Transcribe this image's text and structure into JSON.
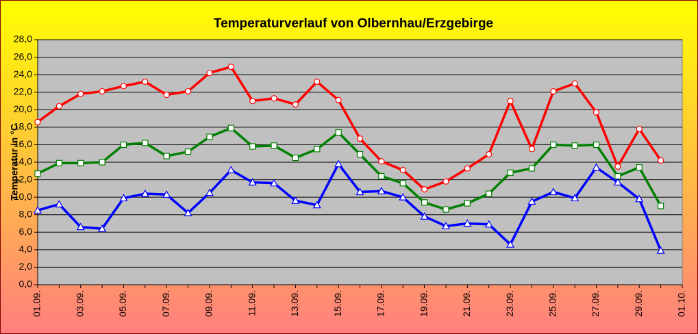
{
  "chart_data": {
    "type": "line",
    "title": "Temperaturverlauf von Olbernhau/Erzgebirge",
    "y_label": "Temperatur in °C",
    "categories": [
      "01.09.",
      null,
      "03.09.",
      null,
      "05.09.",
      null,
      "07.09.",
      null,
      "09.09.",
      null,
      "11.09.",
      null,
      "13.09.",
      null,
      "15.09.",
      null,
      "17.09.",
      null,
      "19.09.",
      null,
      "21.09.",
      null,
      "23.09.",
      null,
      "25.09.",
      null,
      "27.09.",
      null,
      "29.09.",
      null,
      "01.10."
    ],
    "series": [
      {
        "color": "#ff0000",
        "marker": "circle",
        "values": [
          18.6,
          20.4,
          21.8,
          22.1,
          22.7,
          23.2,
          21.7,
          22.1,
          24.2,
          24.9,
          21.0,
          21.3,
          20.6,
          23.2,
          21.1,
          16.7,
          14.1,
          13.1,
          10.9,
          11.8,
          13.3,
          14.9,
          21.0,
          15.5,
          22.1,
          23.0,
          19.7,
          13.5,
          17.8,
          14.2,
          null
        ]
      },
      {
        "color": "#008000",
        "marker": "square",
        "values": [
          12.7,
          13.9,
          13.9,
          14.0,
          16.0,
          16.2,
          14.7,
          15.2,
          16.9,
          17.9,
          15.8,
          15.9,
          14.5,
          15.5,
          17.4,
          14.9,
          12.4,
          11.6,
          9.4,
          8.6,
          9.3,
          10.4,
          12.8,
          13.3,
          16.0,
          15.9,
          16.0,
          12.4,
          13.4,
          9.0,
          null
        ]
      },
      {
        "color": "#0000ff",
        "marker": "triangle",
        "values": [
          8.5,
          9.2,
          6.6,
          6.4,
          9.9,
          10.4,
          10.3,
          8.2,
          10.5,
          13.1,
          11.7,
          11.6,
          9.6,
          9.1,
          13.8,
          10.6,
          10.7,
          10.0,
          7.8,
          6.7,
          7.0,
          6.9,
          4.6,
          9.5,
          10.6,
          9.9,
          13.4,
          11.7,
          9.8,
          3.9,
          null
        ]
      }
    ],
    "ylim": [
      0,
      28
    ],
    "yticks": [
      {
        "value": 0,
        "label": "0,0"
      },
      {
        "value": 2,
        "label": "2,0"
      },
      {
        "value": 4,
        "label": "4,0"
      },
      {
        "value": 6,
        "label": "6,0"
      },
      {
        "value": 8,
        "label": "8,0"
      },
      {
        "value": 10,
        "label": "10,0"
      },
      {
        "value": 12,
        "label": "12,0"
      },
      {
        "value": 14,
        "label": "14,0"
      },
      {
        "value": 16,
        "label": "16,0"
      },
      {
        "value": 18,
        "label": "18,0"
      },
      {
        "value": 20,
        "label": "20,0"
      },
      {
        "value": 22,
        "label": "22,0"
      },
      {
        "value": 24,
        "label": "24,0"
      },
      {
        "value": 26,
        "label": "26,0"
      },
      {
        "value": 28,
        "label": "28,0"
      }
    ],
    "grid": true,
    "plot_color": "#c0c0c0"
  }
}
